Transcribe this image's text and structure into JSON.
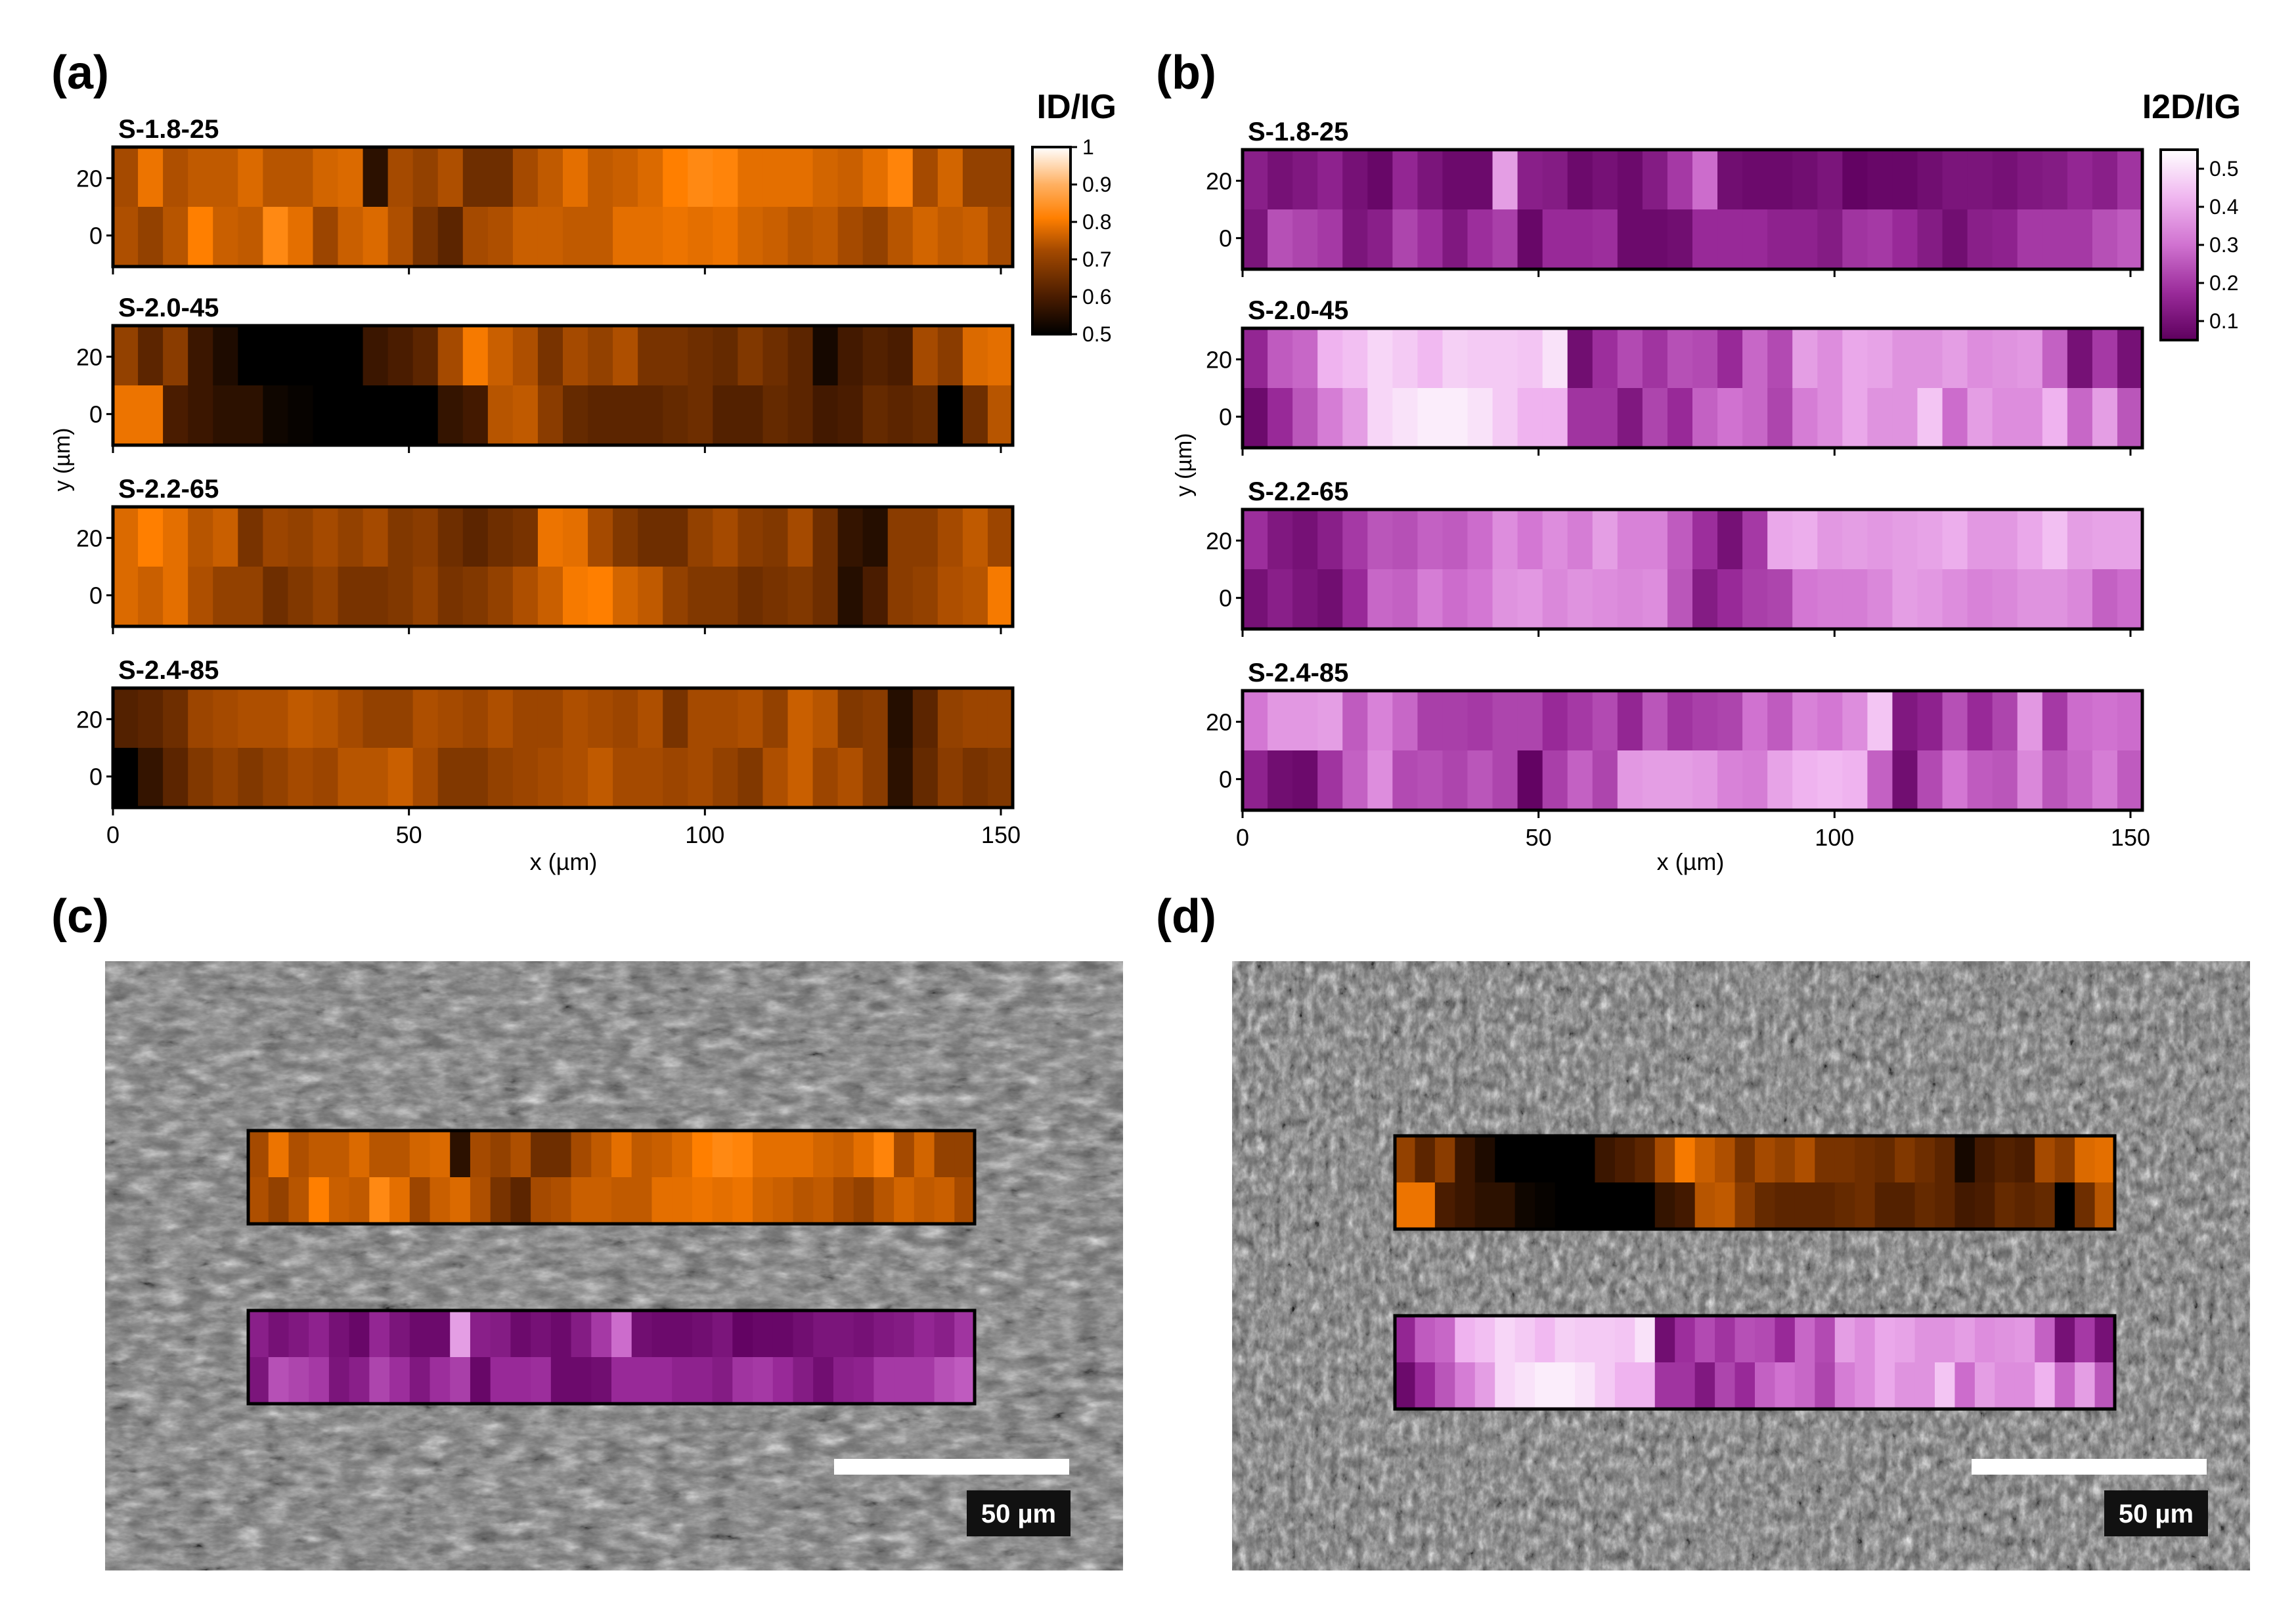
{
  "panel_labels": [
    "(a)",
    "(b)",
    "(c)",
    "(d)"
  ],
  "scale_bar_label": "50 µm",
  "colors": {
    "id_ig_scale": [
      "#000000",
      "#4a1c00",
      "#a54a00",
      "#ff7f00",
      "#ffb061",
      "#ffffff"
    ],
    "i2d_ig_scale": [
      "#5e005e",
      "#9a2b9a",
      "#d072d0",
      "#f0b6f0",
      "#ffffff"
    ],
    "sem_dark": "#3c3c3c",
    "sem_light": "#9e9e9e"
  },
  "chart_data": [
    {
      "type": "heatmap",
      "panel": "(a)",
      "title": "ID/IG",
      "xlabel": "x (µm)",
      "ylabel": "y (µm)",
      "xlim": [
        0,
        152
      ],
      "x_ticks": [
        "0",
        "50",
        "100",
        "150"
      ],
      "y_ticks": [
        "0",
        "20"
      ],
      "colorbar": {
        "label": "ID/IG",
        "min": 0.5,
        "max": 1.0,
        "ticks": [
          "0.5",
          "0.6",
          "0.7",
          "0.8",
          "0.9",
          "1"
        ]
      },
      "series": [
        {
          "name": "S-1.8-25",
          "rows": [
            [
              0.7,
              0.78,
              0.71,
              0.73,
              0.73,
              0.76,
              0.72,
              0.72,
              0.75,
              0.76,
              0.56,
              0.7,
              0.68,
              0.71,
              0.64,
              0.64,
              0.7,
              0.73,
              0.77,
              0.73,
              0.74,
              0.76,
              0.8,
              0.82,
              0.81,
              0.77,
              0.77,
              0.77,
              0.75,
              0.74,
              0.77,
              0.81,
              0.7,
              0.75,
              0.68,
              0.68
            ],
            [
              0.71,
              0.68,
              0.72,
              0.8,
              0.74,
              0.73,
              0.82,
              0.77,
              0.69,
              0.74,
              0.76,
              0.71,
              0.65,
              0.62,
              0.7,
              0.71,
              0.74,
              0.74,
              0.73,
              0.73,
              0.77,
              0.77,
              0.78,
              0.77,
              0.78,
              0.75,
              0.74,
              0.72,
              0.73,
              0.7,
              0.68,
              0.72,
              0.75,
              0.73,
              0.74,
              0.7
            ]
          ]
        },
        {
          "name": "S-2.0-45",
          "rows": [
            [
              0.68,
              0.62,
              0.67,
              0.58,
              0.54,
              0.5,
              0.5,
              0.5,
              0.5,
              0.5,
              0.58,
              0.6,
              0.62,
              0.7,
              0.79,
              0.74,
              0.71,
              0.65,
              0.7,
              0.68,
              0.71,
              0.65,
              0.65,
              0.64,
              0.63,
              0.66,
              0.64,
              0.62,
              0.53,
              0.59,
              0.61,
              0.6,
              0.7,
              0.67,
              0.76,
              0.77
            ],
            [
              0.78,
              0.78,
              0.6,
              0.58,
              0.56,
              0.56,
              0.52,
              0.51,
              0.5,
              0.5,
              0.5,
              0.5,
              0.5,
              0.57,
              0.59,
              0.72,
              0.73,
              0.67,
              0.63,
              0.62,
              0.62,
              0.62,
              0.63,
              0.64,
              0.61,
              0.61,
              0.63,
              0.62,
              0.59,
              0.6,
              0.63,
              0.62,
              0.63,
              0.5,
              0.64,
              0.72
            ]
          ]
        },
        {
          "name": "S-2.2-65",
          "rows": [
            [
              0.76,
              0.8,
              0.77,
              0.72,
              0.74,
              0.65,
              0.69,
              0.68,
              0.7,
              0.68,
              0.7,
              0.66,
              0.67,
              0.64,
              0.62,
              0.64,
              0.65,
              0.78,
              0.77,
              0.7,
              0.66,
              0.64,
              0.64,
              0.68,
              0.7,
              0.67,
              0.66,
              0.7,
              0.64,
              0.57,
              0.55,
              0.67,
              0.67,
              0.7,
              0.73,
              0.69
            ],
            [
              0.76,
              0.74,
              0.77,
              0.71,
              0.68,
              0.68,
              0.64,
              0.66,
              0.68,
              0.65,
              0.65,
              0.66,
              0.68,
              0.65,
              0.66,
              0.68,
              0.71,
              0.74,
              0.79,
              0.8,
              0.75,
              0.73,
              0.68,
              0.66,
              0.66,
              0.64,
              0.65,
              0.66,
              0.64,
              0.55,
              0.6,
              0.67,
              0.68,
              0.71,
              0.72,
              0.79
            ]
          ]
        },
        {
          "name": "S-2.4-85",
          "rows": [
            [
              0.61,
              0.62,
              0.64,
              0.69,
              0.7,
              0.71,
              0.71,
              0.73,
              0.72,
              0.7,
              0.68,
              0.68,
              0.71,
              0.7,
              0.69,
              0.71,
              0.69,
              0.69,
              0.71,
              0.7,
              0.69,
              0.71,
              0.65,
              0.7,
              0.7,
              0.71,
              0.68,
              0.74,
              0.72,
              0.66,
              0.67,
              0.55,
              0.62,
              0.68,
              0.69,
              0.69
            ],
            [
              0.5,
              0.57,
              0.62,
              0.66,
              0.68,
              0.66,
              0.68,
              0.7,
              0.69,
              0.72,
              0.72,
              0.74,
              0.7,
              0.66,
              0.66,
              0.68,
              0.69,
              0.7,
              0.71,
              0.73,
              0.7,
              0.7,
              0.69,
              0.7,
              0.68,
              0.66,
              0.71,
              0.74,
              0.69,
              0.71,
              0.67,
              0.56,
              0.63,
              0.67,
              0.65,
              0.66
            ]
          ]
        }
      ]
    },
    {
      "type": "heatmap",
      "panel": "(b)",
      "title": "I2D/IG",
      "xlabel": "x (µm)",
      "ylabel": "y (µm)",
      "xlim": [
        0,
        152
      ],
      "x_ticks": [
        "0",
        "50",
        "100",
        "150"
      ],
      "y_ticks": [
        "0",
        "20"
      ],
      "colorbar": {
        "label": "I2D/IG",
        "min": 0.05,
        "max": 0.55,
        "ticks": [
          "0.1",
          "0.2",
          "0.3",
          "0.4",
          "0.5"
        ]
      },
      "series": [
        {
          "name": "S-1.8-25",
          "rows": [
            [
              0.14,
              0.1,
              0.12,
              0.15,
              0.1,
              0.07,
              0.16,
              0.11,
              0.08,
              0.08,
              0.38,
              0.14,
              0.13,
              0.08,
              0.1,
              0.08,
              0.13,
              0.2,
              0.29,
              0.09,
              0.08,
              0.08,
              0.09,
              0.11,
              0.06,
              0.07,
              0.07,
              0.09,
              0.11,
              0.11,
              0.1,
              0.12,
              0.13,
              0.16,
              0.14,
              0.19
            ],
            [
              0.11,
              0.24,
              0.22,
              0.2,
              0.11,
              0.14,
              0.22,
              0.18,
              0.12,
              0.18,
              0.21,
              0.07,
              0.17,
              0.17,
              0.18,
              0.08,
              0.08,
              0.09,
              0.17,
              0.17,
              0.17,
              0.15,
              0.15,
              0.13,
              0.19,
              0.2,
              0.17,
              0.13,
              0.09,
              0.14,
              0.15,
              0.2,
              0.2,
              0.2,
              0.24,
              0.26
            ]
          ]
        },
        {
          "name": "S-2.0-45",
          "rows": [
            [
              0.16,
              0.26,
              0.28,
              0.42,
              0.44,
              0.48,
              0.46,
              0.43,
              0.47,
              0.46,
              0.46,
              0.45,
              0.5,
              0.09,
              0.18,
              0.23,
              0.19,
              0.24,
              0.23,
              0.17,
              0.28,
              0.23,
              0.38,
              0.35,
              0.4,
              0.39,
              0.36,
              0.36,
              0.38,
              0.35,
              0.36,
              0.37,
              0.27,
              0.1,
              0.2,
              0.1
            ],
            [
              0.08,
              0.17,
              0.25,
              0.32,
              0.38,
              0.48,
              0.5,
              0.52,
              0.52,
              0.5,
              0.46,
              0.42,
              0.42,
              0.19,
              0.19,
              0.12,
              0.22,
              0.17,
              0.27,
              0.3,
              0.28,
              0.22,
              0.32,
              0.35,
              0.4,
              0.36,
              0.36,
              0.45,
              0.29,
              0.38,
              0.35,
              0.35,
              0.42,
              0.28,
              0.38,
              0.25
            ]
          ]
        },
        {
          "name": "S-2.2-65",
          "rows": [
            [
              0.18,
              0.12,
              0.1,
              0.14,
              0.2,
              0.25,
              0.24,
              0.27,
              0.26,
              0.29,
              0.35,
              0.31,
              0.35,
              0.32,
              0.38,
              0.33,
              0.33,
              0.26,
              0.18,
              0.1,
              0.2,
              0.4,
              0.41,
              0.37,
              0.38,
              0.37,
              0.38,
              0.39,
              0.41,
              0.37,
              0.37,
              0.4,
              0.44,
              0.38,
              0.39,
              0.39
            ],
            [
              0.1,
              0.14,
              0.11,
              0.09,
              0.17,
              0.28,
              0.27,
              0.32,
              0.29,
              0.31,
              0.36,
              0.37,
              0.34,
              0.36,
              0.35,
              0.34,
              0.35,
              0.25,
              0.13,
              0.17,
              0.21,
              0.22,
              0.31,
              0.32,
              0.32,
              0.34,
              0.38,
              0.37,
              0.35,
              0.33,
              0.34,
              0.36,
              0.36,
              0.34,
              0.27,
              0.29
            ]
          ]
        },
        {
          "name": "S-2.4-85",
          "rows": [
            [
              0.31,
              0.37,
              0.37,
              0.38,
              0.26,
              0.33,
              0.28,
              0.21,
              0.21,
              0.2,
              0.22,
              0.22,
              0.17,
              0.2,
              0.23,
              0.16,
              0.25,
              0.19,
              0.21,
              0.22,
              0.3,
              0.26,
              0.33,
              0.31,
              0.35,
              0.45,
              0.12,
              0.15,
              0.24,
              0.17,
              0.22,
              0.37,
              0.2,
              0.29,
              0.3,
              0.29
            ],
            [
              0.15,
              0.09,
              0.08,
              0.19,
              0.27,
              0.35,
              0.23,
              0.24,
              0.22,
              0.25,
              0.22,
              0.06,
              0.21,
              0.27,
              0.22,
              0.37,
              0.38,
              0.38,
              0.37,
              0.33,
              0.32,
              0.39,
              0.42,
              0.43,
              0.42,
              0.27,
              0.09,
              0.23,
              0.31,
              0.26,
              0.25,
              0.34,
              0.25,
              0.28,
              0.32,
              0.26
            ]
          ]
        }
      ]
    }
  ]
}
